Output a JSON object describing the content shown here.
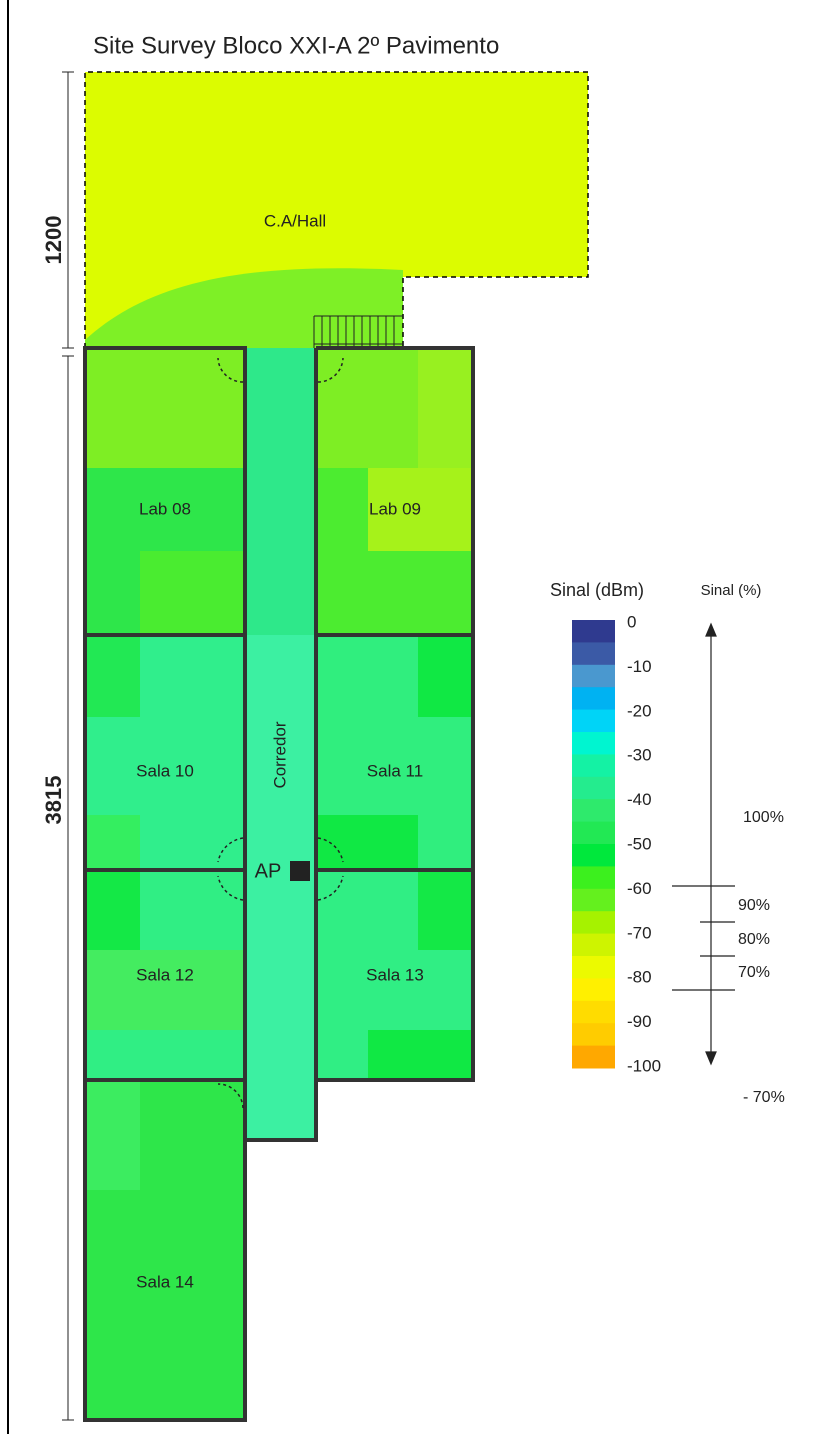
{
  "title": "Site Survey Bloco XXI-A 2º Pavimento",
  "dimensions": [
    "1200",
    "3815"
  ],
  "rooms": [
    {
      "label": "C.A/Hall"
    },
    {
      "label": "Lab 08"
    },
    {
      "label": "Lab 09"
    },
    {
      "label": "Corredor"
    },
    {
      "label": "Sala 10"
    },
    {
      "label": "Sala 11"
    },
    {
      "label": "Sala 12"
    },
    {
      "label": "Sala 13"
    },
    {
      "label": "Sala 14"
    }
  ],
  "access_point": "AP",
  "legend": {
    "title_dbm": "Sinal (dBm)",
    "title_pct": "Sinal (%)",
    "ticks": [
      0,
      -10,
      -20,
      -30,
      -40,
      -50,
      -60,
      -70,
      -80,
      -90,
      -100
    ],
    "colors": [
      "#2f3a8f",
      "#3b5aa6",
      "#4a98cf",
      "#00b2f2",
      "#00d4f7",
      "#00f5d0",
      "#14f2a4",
      "#24ec8e",
      "#2eea6c",
      "#22e854",
      "#00e83c",
      "#3cf01e",
      "#64f01e",
      "#a6f200",
      "#cef400",
      "#ecfa00",
      "#fff000",
      "#ffdc00",
      "#ffcc00",
      "#ffa800"
    ],
    "percent_labels": [
      "100%",
      "90%",
      "80%",
      "70%",
      "- 70%"
    ]
  }
}
